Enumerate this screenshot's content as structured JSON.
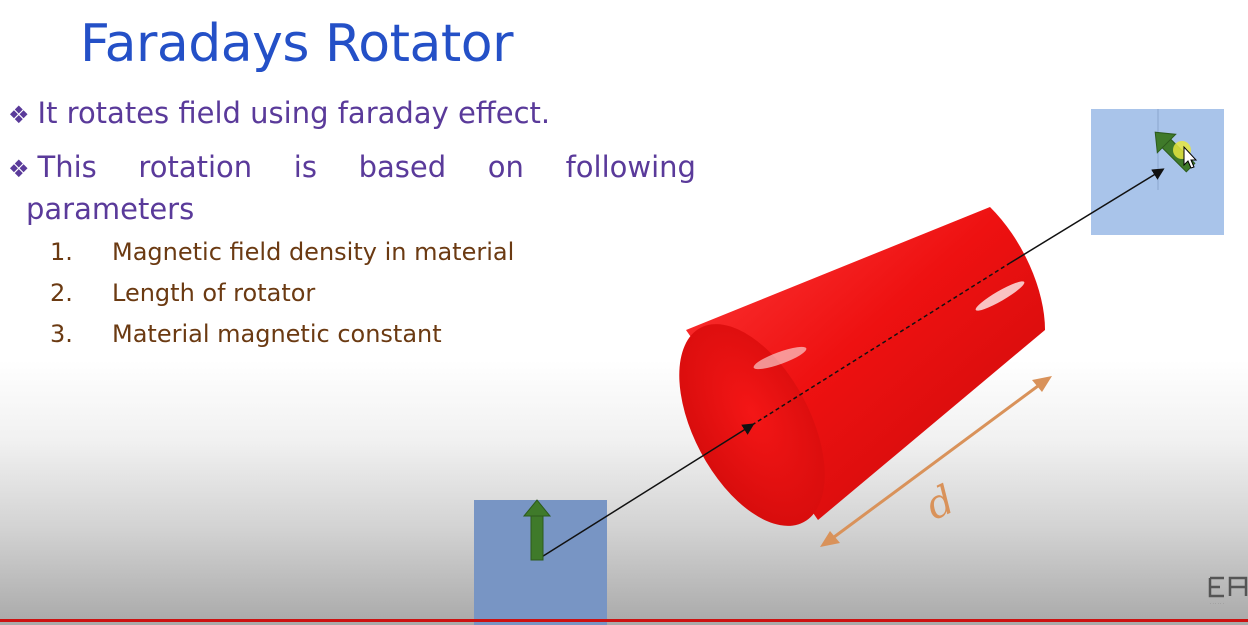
{
  "slide": {
    "title": "Faradays Rotator",
    "bullets": [
      {
        "icon": "diamond-bullet-icon",
        "text": "It rotates field using faraday effect."
      },
      {
        "icon": "diamond-bullet-icon",
        "words": [
          "This",
          "rotation",
          "is",
          "based",
          "on",
          "following"
        ],
        "continuation": "parameters"
      }
    ],
    "numbered": [
      {
        "num": "1.",
        "text": "Magnetic field density in material"
      },
      {
        "num": "2.",
        "text": "Length of rotator"
      },
      {
        "num": "3.",
        "text": "Material magnetic constant"
      }
    ],
    "diagram_label": "d"
  },
  "colors": {
    "title": "#2450c7",
    "bullet_text": "#5a3a9a",
    "numbered_text": "#6b3a12",
    "cylinder": "#ee1111",
    "arrow": "#3f7a2a",
    "panel": "#a9c4ea",
    "dimension": "#d9925a",
    "progress": "#cc1111"
  }
}
